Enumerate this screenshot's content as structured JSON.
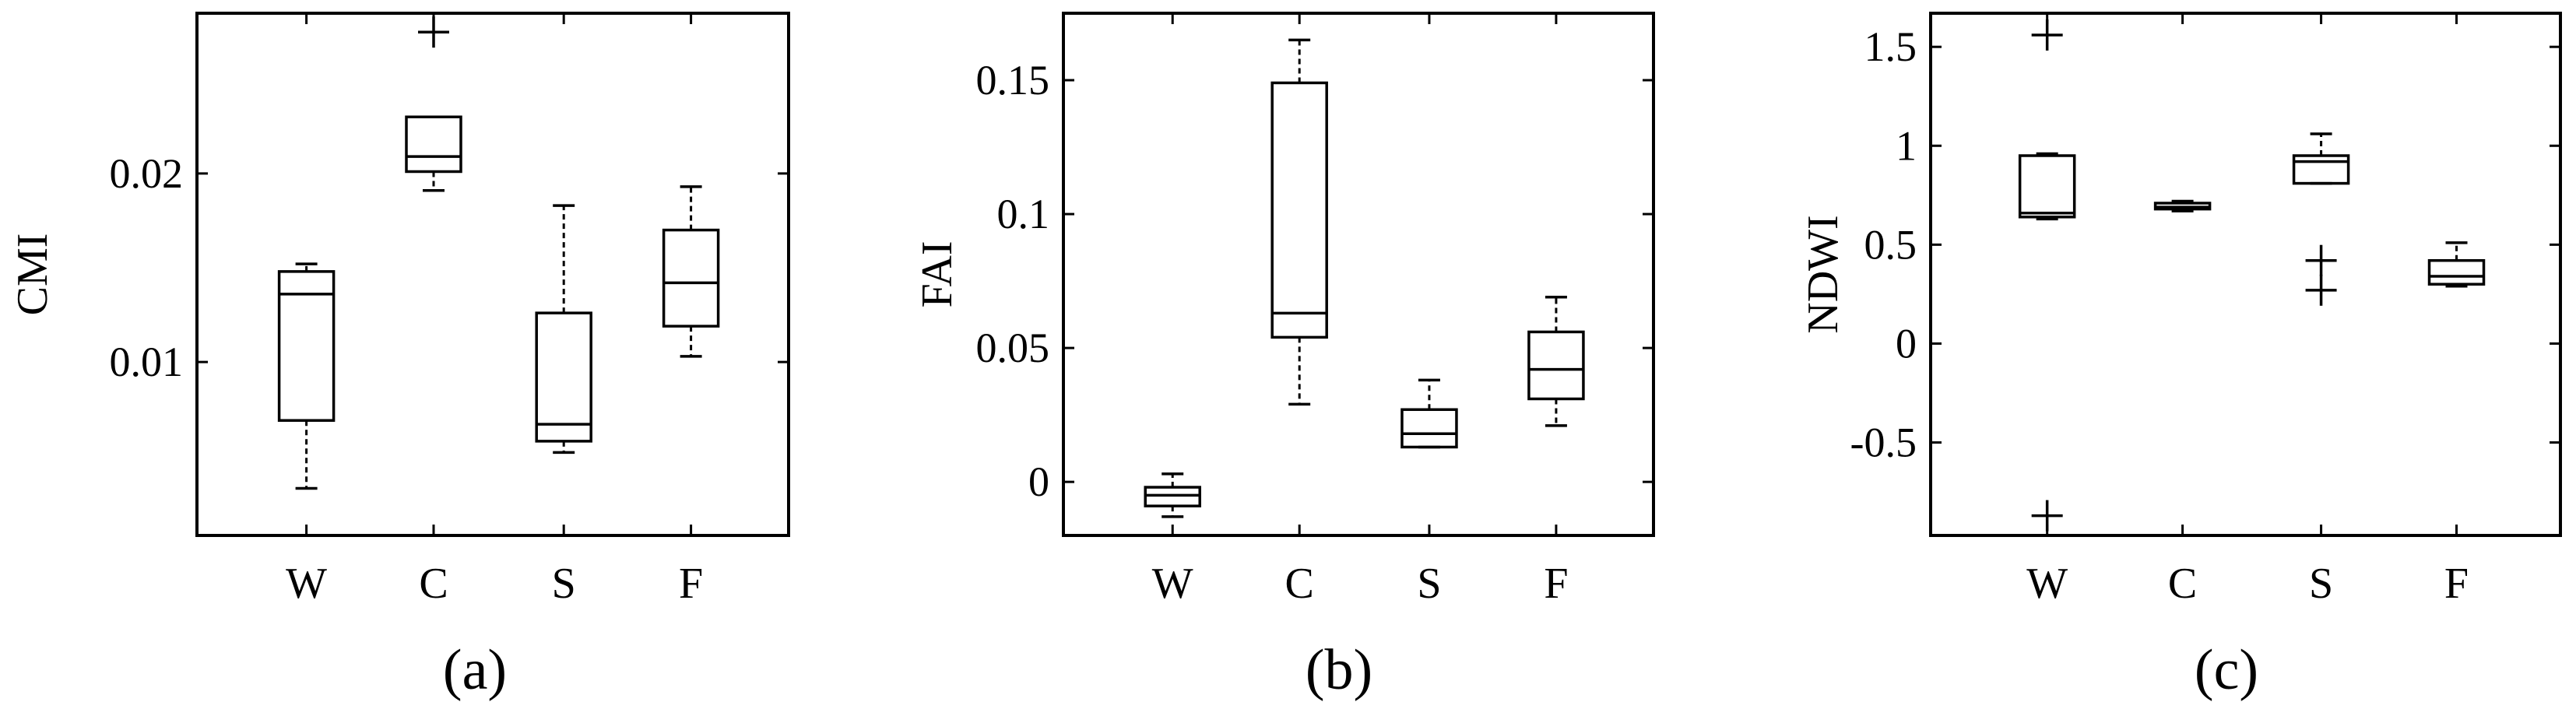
{
  "chart_data": [
    {
      "type": "box",
      "panel_label": "(a)",
      "ylabel": "CMI",
      "categories": [
        "W",
        "C",
        "S",
        "F"
      ],
      "ylim": [
        0.0008,
        0.0285
      ],
      "yticks": [
        0.01,
        0.02
      ],
      "ytick_labels": [
        "0.01",
        "0.02"
      ],
      "boxes": [
        {
          "category": "W",
          "whislo": 0.0033,
          "q1": 0.0069,
          "med": 0.0136,
          "q3": 0.0148,
          "whishi": 0.0152,
          "outliers": []
        },
        {
          "category": "C",
          "whislo": 0.0191,
          "q1": 0.0201,
          "med": 0.0209,
          "q3": 0.023,
          "whishi": 0.023,
          "outliers": [
            0.0275
          ]
        },
        {
          "category": "S",
          "whislo": 0.0052,
          "q1": 0.0058,
          "med": 0.0067,
          "q3": 0.0126,
          "whishi": 0.0183,
          "outliers": []
        },
        {
          "category": "F",
          "whislo": 0.0103,
          "q1": 0.0119,
          "med": 0.0142,
          "q3": 0.017,
          "whishi": 0.0193,
          "outliers": []
        }
      ]
    },
    {
      "type": "box",
      "panel_label": "(b)",
      "ylabel": "FAI",
      "categories": [
        "W",
        "C",
        "S",
        "F"
      ],
      "ylim": [
        -0.02,
        0.175
      ],
      "yticks": [
        0,
        0.05,
        0.1,
        0.15
      ],
      "ytick_labels": [
        "0",
        "0.05",
        "0.1",
        "0.15"
      ],
      "boxes": [
        {
          "category": "W",
          "whislo": -0.013,
          "q1": -0.009,
          "med": -0.005,
          "q3": -0.002,
          "whishi": 0.003,
          "outliers": []
        },
        {
          "category": "C",
          "whislo": 0.029,
          "q1": 0.054,
          "med": 0.063,
          "q3": 0.149,
          "whishi": 0.165,
          "outliers": []
        },
        {
          "category": "S",
          "whislo": 0.013,
          "q1": 0.013,
          "med": 0.018,
          "q3": 0.027,
          "whishi": 0.038,
          "outliers": []
        },
        {
          "category": "F",
          "whislo": 0.021,
          "q1": 0.031,
          "med": 0.042,
          "q3": 0.056,
          "whishi": 0.069,
          "outliers": []
        }
      ]
    },
    {
      "type": "box",
      "panel_label": "(c)",
      "ylabel": "NDWI",
      "categories": [
        "W",
        "C",
        "S",
        "F"
      ],
      "ylim": [
        -0.97,
        1.67
      ],
      "yticks": [
        -0.5,
        0,
        0.5,
        1,
        1.5
      ],
      "ytick_labels": [
        "-0.5",
        "0",
        "0.5",
        "1",
        "1.5"
      ],
      "boxes": [
        {
          "category": "W",
          "whislo": 0.63,
          "q1": 0.64,
          "med": 0.66,
          "q3": 0.95,
          "whishi": 0.96,
          "outliers": [
            1.56,
            -0.87
          ]
        },
        {
          "category": "C",
          "whislo": 0.67,
          "q1": 0.68,
          "med": 0.69,
          "q3": 0.71,
          "whishi": 0.72,
          "outliers": []
        },
        {
          "category": "S",
          "whislo": 0.81,
          "q1": 0.81,
          "med": 0.92,
          "q3": 0.95,
          "whishi": 1.06,
          "outliers": [
            0.42,
            0.27
          ]
        },
        {
          "category": "F",
          "whislo": 0.29,
          "q1": 0.3,
          "med": 0.34,
          "q3": 0.42,
          "whishi": 0.51,
          "outliers": []
        }
      ]
    }
  ]
}
